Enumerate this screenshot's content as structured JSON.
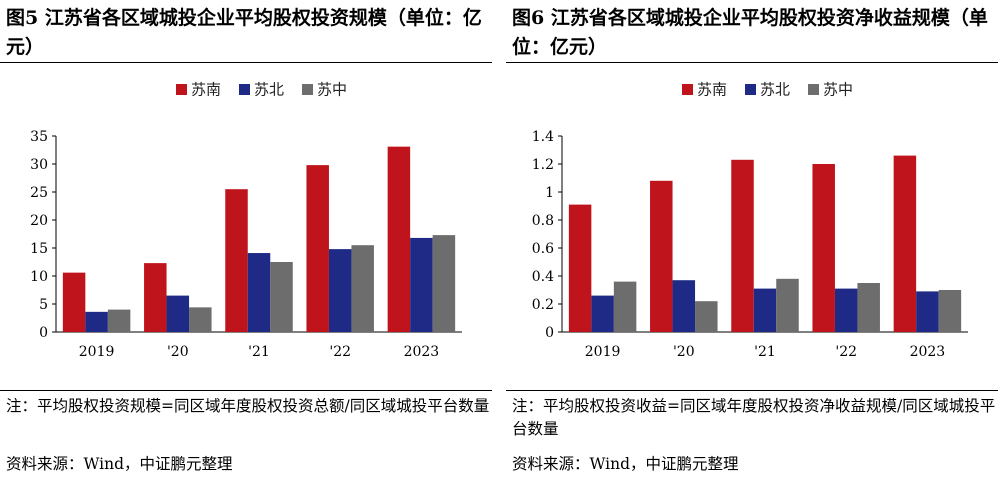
{
  "colors": {
    "sunan": "#c0141c",
    "subei": "#1f2a86",
    "suzhong": "#6d6d6d"
  },
  "charts": [
    {
      "title": "图5 江苏省各区域城投企业平均股权投资规模（单位：亿元）",
      "note": "注：平均股权投资规模=同区域年度股权投资总额/同区域城投平台数量",
      "source": "资料来源：Wind，中证鹏元整理"
    },
    {
      "title": "图6 江苏省各区域城投企业平均股权投资净收益规模（单位：亿元）",
      "note": "注：平均股权投资收益=同区域年度股权投资净收益规模/同区域城投平台数量",
      "source": "资料来源：Wind，中证鹏元整理"
    }
  ],
  "chart_data": [
    {
      "type": "bar",
      "title": "图5 江苏省各区域城投企业平均股权投资规模（单位：亿元）",
      "categories": [
        "2019",
        "'20",
        "'21",
        "'22",
        "2023"
      ],
      "series": [
        {
          "name": "苏南",
          "values": [
            10.6,
            12.3,
            25.5,
            29.8,
            33.1
          ]
        },
        {
          "name": "苏北",
          "values": [
            3.6,
            6.5,
            14.1,
            14.8,
            16.8
          ]
        },
        {
          "name": "苏中",
          "values": [
            4.0,
            4.4,
            12.5,
            15.5,
            17.3
          ]
        }
      ],
      "yticks": [
        "0",
        "5",
        "10",
        "15",
        "20",
        "25",
        "30",
        "35"
      ],
      "ylim": [
        0,
        35
      ],
      "legend_position": "top-center"
    },
    {
      "type": "bar",
      "title": "图6 江苏省各区域城投企业平均股权投资净收益规模（单位：亿元）",
      "categories": [
        "2019",
        "'20",
        "'21",
        "'22",
        "2023"
      ],
      "series": [
        {
          "name": "苏南",
          "values": [
            0.91,
            1.08,
            1.23,
            1.2,
            1.26
          ]
        },
        {
          "name": "苏北",
          "values": [
            0.26,
            0.37,
            0.31,
            0.31,
            0.29
          ]
        },
        {
          "name": "苏中",
          "values": [
            0.36,
            0.22,
            0.38,
            0.35,
            0.3
          ]
        }
      ],
      "yticks": [
        "0",
        "0.2",
        "0.4",
        "0.6",
        "0.8",
        "1",
        "1.2",
        "1.4"
      ],
      "ylim": [
        0,
        1.4
      ],
      "legend_position": "top-center"
    }
  ]
}
